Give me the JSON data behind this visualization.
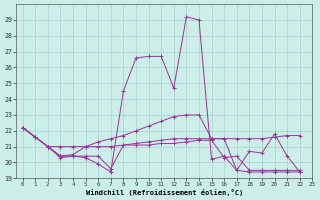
{
  "xlabel": "Windchill (Refroidissement éolien,°C)",
  "background_color": "#cceee8",
  "grid_color": "#aacccc",
  "line_color": "#993399",
  "series": [
    [
      22.2,
      21.6,
      21.0,
      20.4,
      20.4,
      20.3,
      19.9,
      19.4,
      24.5,
      26.6,
      26.7,
      26.7,
      24.7,
      29.2,
      29.0,
      20.2,
      20.4,
      19.5,
      20.7,
      20.6,
      21.8,
      20.4,
      19.4
    ],
    [
      22.2,
      21.6,
      21.0,
      21.0,
      21.0,
      21.0,
      21.0,
      21.0,
      21.1,
      21.2,
      21.3,
      21.4,
      21.5,
      21.5,
      21.5,
      21.5,
      21.5,
      21.5,
      21.5,
      21.5,
      21.6,
      21.7,
      21.7
    ],
    [
      22.2,
      21.6,
      21.0,
      20.4,
      20.5,
      21.0,
      21.3,
      21.5,
      21.7,
      22.0,
      22.3,
      22.6,
      22.9,
      23.0,
      23.0,
      21.5,
      21.5,
      19.5,
      19.4,
      19.4,
      19.4,
      19.4,
      19.4
    ],
    [
      22.2,
      21.6,
      21.0,
      20.3,
      20.4,
      20.4,
      20.4,
      19.6,
      21.1,
      21.1,
      21.1,
      21.2,
      21.2,
      21.3,
      21.4,
      21.4,
      20.3,
      20.4,
      19.5,
      19.5,
      19.5,
      19.5,
      19.5
    ]
  ],
  "x_start": 0,
  "n_points": 23,
  "ylim": [
    19,
    30
  ],
  "xlim": [
    -0.5,
    23
  ],
  "yticks": [
    19,
    20,
    21,
    22,
    23,
    24,
    25,
    26,
    27,
    28,
    29
  ],
  "xticks": [
    0,
    1,
    2,
    3,
    4,
    5,
    6,
    7,
    8,
    9,
    10,
    11,
    12,
    13,
    14,
    15,
    16,
    17,
    18,
    19,
    20,
    21,
    22,
    23
  ]
}
